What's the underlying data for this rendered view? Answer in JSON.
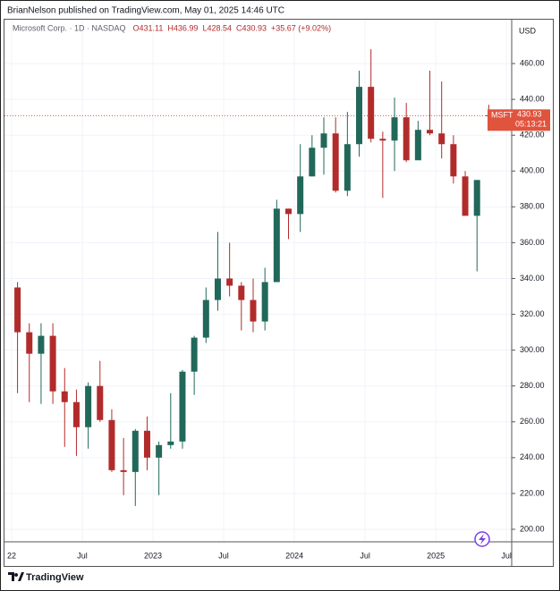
{
  "publisher": "BrianNelson published on TradingView.com, May 01, 2025 14:46 UTC",
  "footer": "TradingView",
  "chart_data": {
    "type": "candlestick",
    "title": "Microsoft Corp. · 1D · NASDAQ",
    "ohlc_legend": [
      "O431.11",
      "H436.99",
      "L428.54",
      "C430.93",
      "+35.67 (+9.02%)"
    ],
    "currency": "USD",
    "symbol": "MSFT",
    "last_price": 430.93,
    "countdown": "05:13:21",
    "categories": [
      "22",
      null,
      null,
      null,
      null,
      null,
      "Jul",
      null,
      null,
      null,
      null,
      null,
      "2023",
      null,
      null,
      null,
      null,
      null,
      "Jul",
      null,
      null,
      null,
      null,
      null,
      "2024",
      null,
      null,
      null,
      null,
      null,
      "Jul",
      null,
      null,
      null,
      null,
      null,
      "2025",
      null,
      null,
      null,
      null,
      null,
      "Jul"
    ],
    "open": [
      335,
      310,
      298,
      308,
      277,
      271,
      257,
      280,
      261,
      233,
      232,
      255,
      240,
      247,
      249,
      288,
      307,
      328,
      340,
      336,
      328,
      316,
      338,
      379,
      376,
      397,
      413,
      421,
      389,
      415,
      447,
      418,
      417,
      430,
      406,
      423,
      421,
      415,
      397,
      375,
      431.11,
      null,
      null
    ],
    "high": [
      338,
      315,
      315,
      315,
      290,
      278,
      282,
      294,
      267,
      251,
      256,
      263,
      249,
      276,
      289,
      308,
      335,
      366,
      360,
      338,
      340,
      346,
      384,
      379,
      415,
      420,
      430,
      430,
      433,
      456,
      468,
      422,
      441,
      438,
      428,
      456,
      450,
      420,
      400,
      395,
      436.99,
      null,
      null
    ],
    "low": [
      276,
      271,
      270,
      270,
      246,
      241,
      245,
      260,
      232,
      219,
      213,
      233,
      219,
      245,
      245,
      275,
      304,
      322,
      330,
      311,
      310,
      311,
      339,
      362,
      366,
      397,
      398,
      388,
      386,
      408,
      416,
      385,
      400,
      405,
      408,
      420,
      407,
      393,
      376,
      344,
      428.54,
      null,
      null
    ],
    "close": [
      310,
      298,
      308,
      277,
      271,
      257,
      280,
      261,
      233,
      232,
      255,
      240,
      247,
      249,
      288,
      307,
      328,
      340,
      336,
      328,
      316,
      338,
      379,
      376,
      397,
      413,
      421,
      389,
      415,
      447,
      418,
      417,
      430,
      406,
      423,
      421,
      415,
      397,
      375,
      395,
      430.93,
      null,
      null
    ],
    "up_color": "#22685a",
    "down_color": "#b22b2b",
    "price_color": "#e0533d",
    "ylim": [
      193.5,
      484.5
    ],
    "yticks": [
      {
        "value": 200,
        "label": "200.00"
      },
      {
        "value": 220,
        "label": "220.00"
      },
      {
        "value": 240,
        "label": "240.00"
      },
      {
        "value": 260,
        "label": "260.00"
      },
      {
        "value": 280,
        "label": "280.00"
      },
      {
        "value": 300,
        "label": "300.00"
      },
      {
        "value": 320,
        "label": "320.00"
      },
      {
        "value": 340,
        "label": "340.00"
      },
      {
        "value": 360,
        "label": "360.00"
      },
      {
        "value": 380,
        "label": "380.00"
      },
      {
        "value": 400,
        "label": "400.00"
      },
      {
        "value": 420,
        "label": "420.00"
      },
      {
        "value": 440,
        "label": "440.00"
      },
      {
        "value": 460,
        "label": "460.00"
      }
    ],
    "grid": true
  }
}
